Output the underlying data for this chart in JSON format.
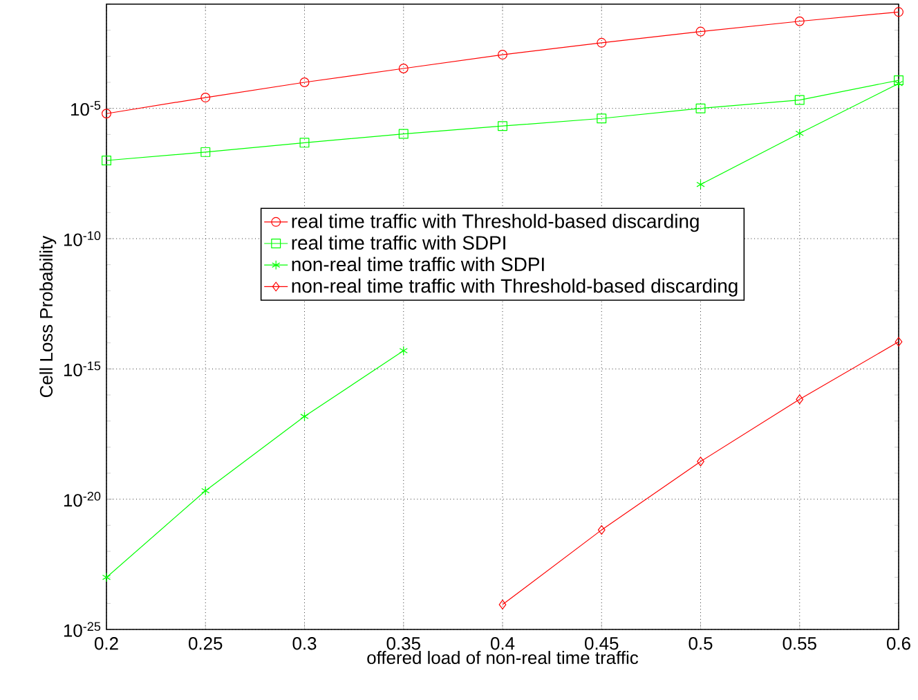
{
  "chart_data": {
    "type": "line",
    "xlabel": "offered load of non-real time traffic",
    "ylabel": "Cell Loss Probability",
    "x": [
      0.2,
      0.25,
      0.3,
      0.35,
      0.4,
      0.45,
      0.5,
      0.55,
      0.6
    ],
    "series": [
      {
        "name": "real time traffic with Threshold-based discarding",
        "color": "#ff0000",
        "marker": "circle",
        "values": [
          6.3e-06,
          2.6e-05,
          0.0001,
          0.00034,
          0.00115,
          0.0033,
          0.0089,
          0.022,
          0.05
        ]
      },
      {
        "name": "real time traffic with SDPI",
        "color": "#00ff00",
        "marker": "square",
        "values": [
          1e-07,
          2.1e-07,
          4.8e-07,
          1.05e-06,
          2.1e-06,
          4.1e-06,
          1e-05,
          2.1e-05,
          0.00012
        ]
      },
      {
        "name": "non-real time traffic with SDPI",
        "color": "#00ff00",
        "marker": "cross",
        "values": [
          1e-23,
          2.1e-20,
          1.5e-17,
          5e-15,
          null,
          null,
          1.2e-08,
          1.1e-06,
          9e-05
        ]
      },
      {
        "name": "non-real time traffic with Threshold-based discarding",
        "color": "#ff0000",
        "marker": "diamond",
        "x": [
          0.4,
          0.45,
          0.5,
          0.55,
          0.6
        ],
        "values": [
          9e-25,
          6.6e-22,
          2.8e-19,
          6.8e-17,
          1.1e-14
        ]
      }
    ],
    "log": "y",
    "grid": true,
    "legend": "center",
    "line_style": "solid",
    "xlim": [
      0.2,
      0.6
    ],
    "xticks": [
      0.2,
      0.25,
      0.3,
      0.35,
      0.4,
      0.45,
      0.5,
      0.55,
      0.6
    ],
    "ylim": [
      1e-25,
      0.1
    ],
    "yticks": [
      {
        "value": 1e-25,
        "label": "10$^{-25}$"
      },
      {
        "value": 1e-20,
        "label": "10$^{-20}$"
      },
      {
        "value": 1e-15,
        "label": "10$^{-15}$"
      },
      {
        "value": 1e-10,
        "label": "10$^{-10}$"
      },
      {
        "value": 1e-05,
        "label": "10$^{-5}$"
      }
    ]
  }
}
